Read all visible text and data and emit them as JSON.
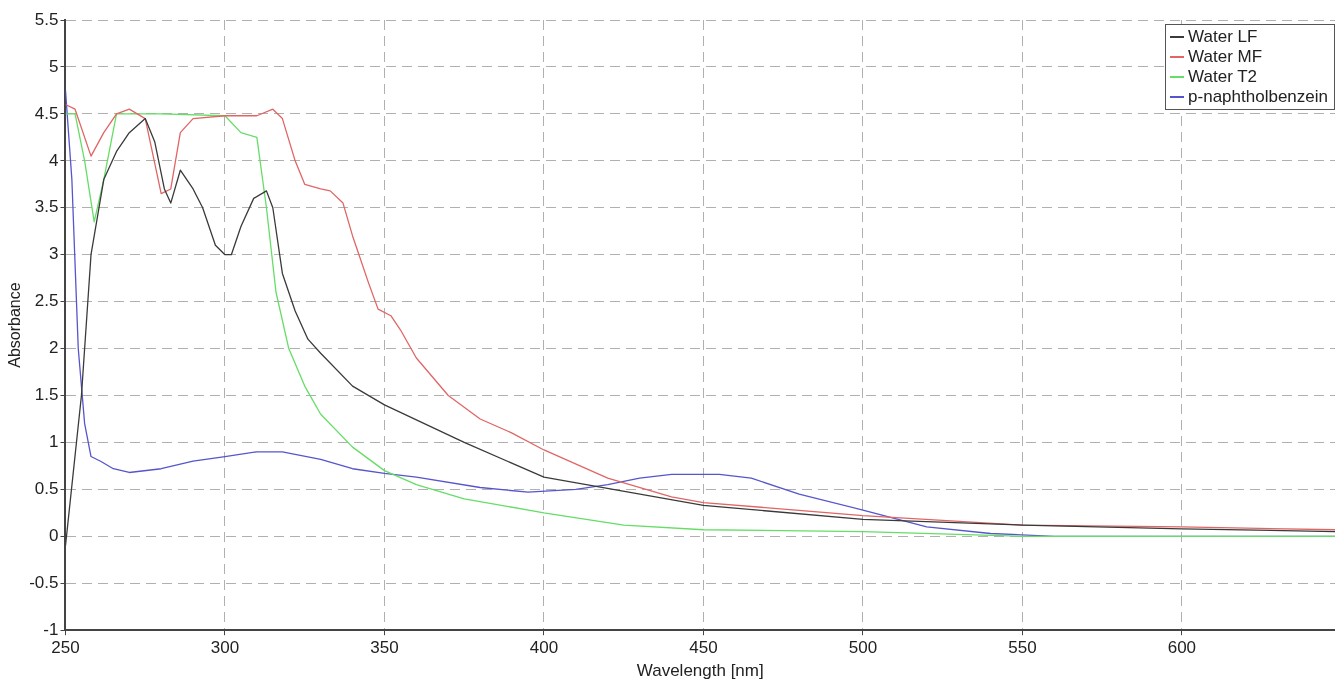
{
  "chart_data": {
    "type": "line",
    "xlabel": "Wavelength [nm]",
    "ylabel": "Absorbance",
    "xlim": [
      250,
      648
    ],
    "xticks": [
      250,
      300,
      350,
      400,
      450,
      500,
      550,
      600
    ],
    "ylim": [
      -1,
      5.5
    ],
    "yticks": [
      -1,
      -0.5,
      0,
      0.5,
      1,
      1.5,
      2,
      2.5,
      3,
      3.5,
      4,
      4.5,
      5,
      5.5
    ],
    "grid": true,
    "legend": "top right",
    "marker": "none",
    "line_style": "solid",
    "series": [
      {
        "name": "Water LF",
        "color": "#3a3a3a",
        "x": [
          250,
          255,
          258,
          262,
          266,
          270,
          275,
          278,
          281,
          283,
          286,
          290,
          293,
          297,
          300,
          302,
          305,
          309,
          313,
          315,
          318,
          322,
          326,
          330,
          340,
          350,
          375,
          400,
          450,
          500,
          550,
          600,
          648
        ],
        "values": [
          -0.1,
          1.5,
          3.0,
          3.8,
          4.1,
          4.3,
          4.45,
          4.2,
          3.7,
          3.55,
          3.9,
          3.7,
          3.5,
          3.1,
          3.0,
          3.0,
          3.3,
          3.6,
          3.68,
          3.5,
          2.8,
          2.4,
          2.1,
          1.95,
          1.6,
          1.4,
          1.0,
          0.63,
          0.33,
          0.18,
          0.12,
          0.08,
          0.05
        ]
      },
      {
        "name": "Water MF",
        "color": "#e06666",
        "x": [
          250,
          253,
          258,
          262,
          266,
          270,
          275,
          280,
          283,
          286,
          290,
          300,
          310,
          315,
          318,
          322,
          325,
          330,
          333,
          337,
          340,
          345,
          348,
          352,
          355,
          360,
          370,
          380,
          390,
          400,
          420,
          440,
          450,
          500,
          550,
          600,
          648
        ],
        "values": [
          4.6,
          4.55,
          4.05,
          4.3,
          4.5,
          4.55,
          4.45,
          3.65,
          3.7,
          4.3,
          4.45,
          4.48,
          4.48,
          4.55,
          4.45,
          4.0,
          3.75,
          3.7,
          3.68,
          3.55,
          3.2,
          2.7,
          2.42,
          2.35,
          2.2,
          1.9,
          1.5,
          1.25,
          1.1,
          0.92,
          0.62,
          0.42,
          0.36,
          0.22,
          0.12,
          0.1,
          0.07
        ]
      },
      {
        "name": "Water T2",
        "color": "#66dd66",
        "x": [
          250,
          253,
          256,
          259,
          262,
          266,
          280,
          300,
          305,
          310,
          313,
          316,
          320,
          325,
          330,
          340,
          350,
          360,
          375,
          400,
          425,
          450,
          500,
          550,
          600,
          648
        ],
        "values": [
          4.5,
          4.5,
          4.0,
          3.35,
          3.8,
          4.5,
          4.5,
          4.48,
          4.3,
          4.25,
          3.5,
          2.6,
          2.0,
          1.6,
          1.3,
          0.95,
          0.7,
          0.55,
          0.4,
          0.25,
          0.12,
          0.07,
          0.05,
          0.0,
          0.0,
          0.0
        ]
      },
      {
        "name": "p-naphtholbenzein",
        "color": "#5555cc",
        "x": [
          250,
          252,
          254,
          256,
          258,
          261,
          265,
          270,
          280,
          290,
          300,
          310,
          318,
          330,
          340,
          350,
          360,
          380,
          395,
          410,
          420,
          430,
          440,
          455,
          465,
          480,
          500,
          520,
          540,
          560,
          600,
          648
        ],
        "values": [
          4.75,
          3.8,
          2.0,
          1.2,
          0.85,
          0.8,
          0.72,
          0.68,
          0.72,
          0.8,
          0.85,
          0.9,
          0.9,
          0.82,
          0.72,
          0.67,
          0.63,
          0.52,
          0.47,
          0.5,
          0.55,
          0.62,
          0.66,
          0.66,
          0.62,
          0.45,
          0.28,
          0.1,
          0.03,
          0.0,
          0.0,
          0.0
        ]
      }
    ]
  }
}
